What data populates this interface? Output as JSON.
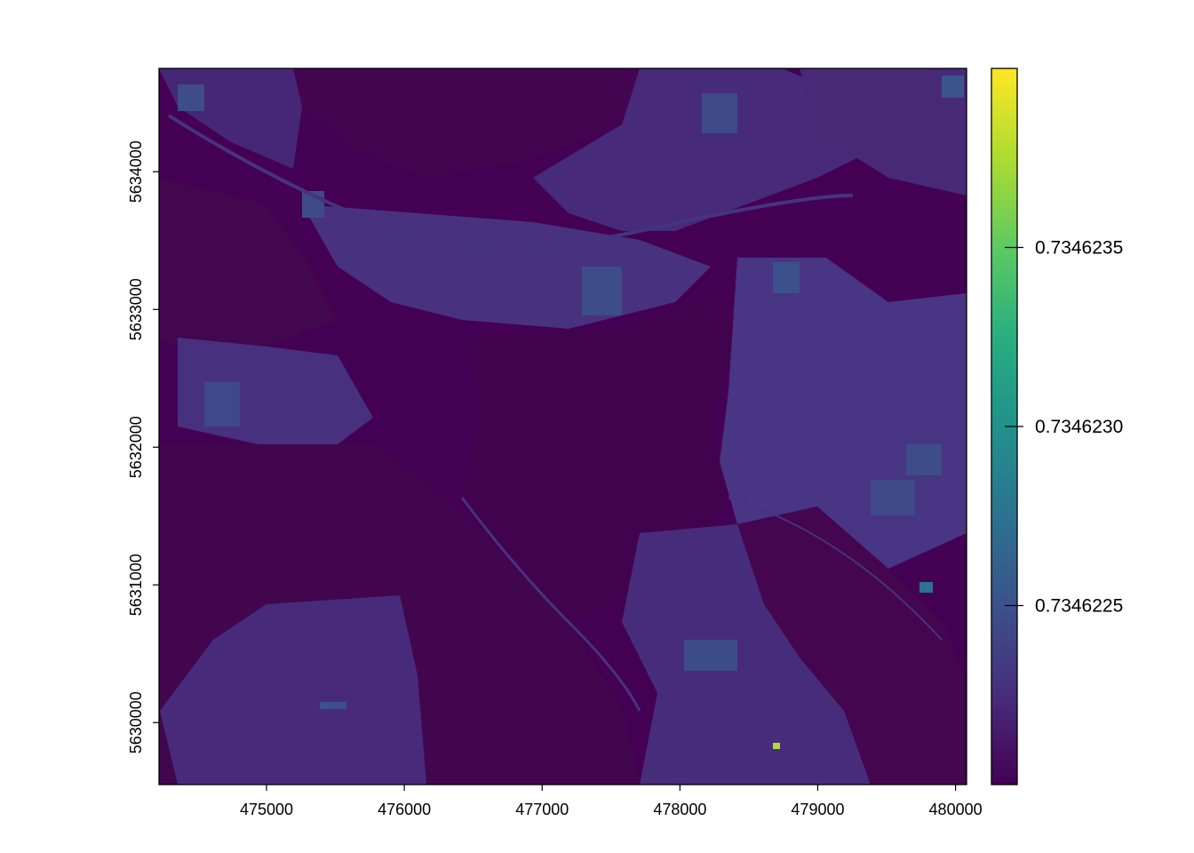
{
  "chart_data": {
    "type": "heatmap",
    "title": "",
    "xlabel": "",
    "ylabel": "",
    "x_range": [
      474220,
      480080
    ],
    "y_range": [
      5629550,
      5634750
    ],
    "x_ticks": [
      475000,
      476000,
      477000,
      478000,
      479000,
      480000
    ],
    "x_tick_labels": [
      "475000",
      "476000",
      "477000",
      "478000",
      "479000",
      "480000"
    ],
    "y_ticks": [
      5630000,
      5631000,
      5632000,
      5633000,
      5634000
    ],
    "y_tick_labels": [
      "5630000",
      "5631000",
      "5632000",
      "5633000",
      "5634000"
    ],
    "colorbar": {
      "range": [
        0.734622,
        0.734624
      ],
      "ticks": [
        0.7346225,
        0.734623,
        0.7346235
      ],
      "tick_labels": [
        "0.7346225",
        "0.7346230",
        "0.7346235"
      ],
      "colormap": "viridis"
    },
    "colors": {
      "low": "#440154",
      "mid_low": "#3b528b",
      "mid": "#21918c",
      "mid_high": "#5ec962",
      "high": "#fde725"
    }
  }
}
